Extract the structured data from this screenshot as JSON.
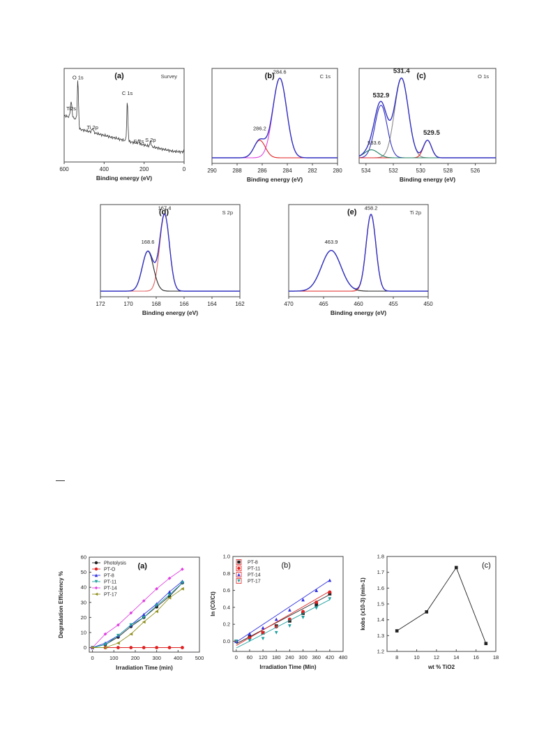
{
  "xps": [
    {
      "id": "a",
      "letter": "(a)",
      "tag": "Survey",
      "xlabel": "Binding energy (eV)",
      "xlim": [
        600,
        0
      ],
      "xticks": [
        600,
        400,
        200,
        0
      ],
      "labels": [
        {
          "text": "O 1s",
          "x": 531,
          "y": 0.97
        },
        {
          "text": "C 1s",
          "x": 284,
          "y": 0.77
        },
        {
          "text": "Ti 2p",
          "x": 458,
          "y": 0.33
        },
        {
          "text": "S 2s",
          "x": 227,
          "y": 0.15
        },
        {
          "text": "S 2p",
          "x": 168,
          "y": 0.17
        },
        {
          "text": "Ti2s",
          "x": 565,
          "y": 0.57
        }
      ]
    },
    {
      "id": "b",
      "letter": "(b)",
      "tag": "C 1s",
      "xlabel": "Binding energy (eV)",
      "xlim": [
        290,
        280
      ],
      "xticks": [
        290,
        288,
        286,
        284,
        282,
        280
      ],
      "peaks": [
        {
          "name": "284.6",
          "center": 284.6,
          "height": 1.0,
          "width": 0.55,
          "color": "#e040e0"
        },
        {
          "name": "286.2",
          "center": 286.2,
          "height": 0.22,
          "width": 0.45,
          "color": "#e02020"
        }
      ],
      "labels": [
        {
          "text": "284.6",
          "x": 284.6,
          "y": 1.04
        },
        {
          "text": "286.2",
          "x": 286.2,
          "y": 0.33
        }
      ]
    },
    {
      "id": "c",
      "letter": "(c)",
      "tag": "O 1s",
      "xlabel": "Binding energy (eV)",
      "xlim": [
        534.5,
        524.5
      ],
      "xticks": [
        534,
        532,
        530,
        528,
        526
      ],
      "peaks": [
        {
          "name": "531.4",
          "center": 531.4,
          "height": 1.0,
          "width": 0.5,
          "color": "#888888"
        },
        {
          "name": "532.9",
          "center": 532.9,
          "height": 0.66,
          "width": 0.45,
          "color": "#3030c0"
        },
        {
          "name": "529.5",
          "center": 529.5,
          "height": 0.22,
          "width": 0.3,
          "color": "#e02020"
        },
        {
          "name": "533.6",
          "center": 533.6,
          "height": 0.1,
          "width": 0.5,
          "color": "#208060"
        }
      ],
      "labels": [
        {
          "text": "531.4",
          "x": 531.4,
          "y": 1.05
        },
        {
          "text": "532.9",
          "x": 532.9,
          "y": 0.74
        },
        {
          "text": "529.5",
          "x": 529.2,
          "y": 0.27
        },
        {
          "text": "533.6",
          "x": 533.4,
          "y": 0.15
        }
      ]
    },
    {
      "id": "d",
      "letter": "(d)",
      "tag": "S 2p",
      "xlabel": "Binding energy (eV)",
      "xlim": [
        172,
        162
      ],
      "xticks": [
        172,
        170,
        168,
        166,
        164,
        162
      ],
      "peaks": [
        {
          "name": "167.4",
          "center": 167.4,
          "height": 1.0,
          "width": 0.35,
          "color": "#e06060"
        },
        {
          "name": "168.6",
          "center": 168.6,
          "height": 0.52,
          "width": 0.4,
          "color": "#222222"
        }
      ],
      "labels": [
        {
          "text": "167.4",
          "x": 167.4,
          "y": 1.04
        },
        {
          "text": "168.6",
          "x": 168.6,
          "y": 0.6
        }
      ]
    },
    {
      "id": "e",
      "letter": "(e)",
      "tag": "Ti 2p",
      "xlabel": "Binding energy (eV)",
      "xlim": [
        470,
        450
      ],
      "xticks": [
        470,
        465,
        460,
        455,
        450
      ],
      "peaks": [
        {
          "name": "458.2",
          "center": 458.2,
          "height": 1.0,
          "width": 0.7,
          "color": "#e02020"
        },
        {
          "name": "463.9",
          "center": 463.9,
          "height": 0.53,
          "width": 1.4,
          "color": "#222222"
        }
      ],
      "labels": [
        {
          "text": "458.2",
          "x": 458.2,
          "y": 1.04
        },
        {
          "text": "463.9",
          "x": 463.9,
          "y": 0.6
        }
      ]
    }
  ],
  "chart_data": [
    {
      "type": "line",
      "id": "deg",
      "letter": "(a)",
      "xlabel": "Irradiation Time (min)",
      "ylabel": "Degradation Efficiency %",
      "xlim": [
        -15,
        500
      ],
      "ylim": [
        -3,
        60
      ],
      "xticks": [
        0,
        100,
        200,
        300,
        400,
        500
      ],
      "yticks": [
        0,
        10,
        20,
        30,
        40,
        50,
        60
      ],
      "legend": "top-left",
      "x": [
        0,
        60,
        120,
        180,
        240,
        300,
        360,
        420
      ],
      "series": [
        {
          "name": "Photolysis",
          "color": "#222222",
          "marker": "circle",
          "values": [
            0,
            2,
            7,
            14,
            20,
            27,
            34,
            43
          ]
        },
        {
          "name": "PT-O",
          "color": "#e02020",
          "marker": "circle",
          "values": [
            0,
            0,
            0,
            0,
            0,
            0,
            0,
            0
          ]
        },
        {
          "name": "PT-8",
          "color": "#3030e0",
          "marker": "triangle",
          "values": [
            0,
            3,
            8,
            15,
            22,
            29,
            37,
            44
          ]
        },
        {
          "name": "PT-11",
          "color": "#20a0a0",
          "marker": "triangle-down",
          "values": [
            0,
            2,
            8,
            15,
            20,
            28,
            35,
            43
          ]
        },
        {
          "name": "PT-14",
          "color": "#e040e0",
          "marker": "diamond",
          "values": [
            0,
            9,
            15,
            23,
            31,
            39,
            46,
            52
          ]
        },
        {
          "name": "PT-17",
          "color": "#909020",
          "marker": "triangle-left",
          "values": [
            0,
            0,
            3,
            9,
            17,
            24,
            33,
            39
          ]
        }
      ]
    },
    {
      "type": "scatter",
      "id": "kin",
      "letter": "(b)",
      "xlabel": "Irradiation Time (Min)",
      "ylabel": "ln (C0/Ct)",
      "xlim": [
        -15,
        480
      ],
      "ylim": [
        -0.12,
        1.0
      ],
      "xticks": [
        0,
        60,
        120,
        180,
        240,
        300,
        360,
        420,
        480
      ],
      "yticks": [
        0.0,
        0.2,
        0.4,
        0.6,
        0.8,
        1.0
      ],
      "legend": "top-left",
      "x": [
        0,
        60,
        120,
        180,
        240,
        300,
        360,
        420
      ],
      "series": [
        {
          "name": "PT-8",
          "color": "#222222",
          "marker": "square",
          "values": [
            0.0,
            0.05,
            0.1,
            0.18,
            0.24,
            0.33,
            0.43,
            0.56
          ],
          "fit": [
            -0.03,
            0.55
          ]
        },
        {
          "name": "PT-11",
          "color": "#e02020",
          "marker": "circle",
          "values": [
            0.0,
            0.04,
            0.1,
            0.17,
            0.26,
            0.35,
            0.46,
            0.58
          ],
          "fit": [
            -0.05,
            0.59
          ]
        },
        {
          "name": "PT-14",
          "color": "#3030e0",
          "marker": "triangle",
          "values": [
            0.0,
            0.09,
            0.16,
            0.26,
            0.37,
            0.49,
            0.6,
            0.72
          ],
          "fit": [
            -0.01,
            0.72
          ]
        },
        {
          "name": "PT-17",
          "color": "#20a0a0",
          "marker": "triangle-down",
          "values": [
            0.0,
            0.01,
            0.03,
            0.1,
            0.18,
            0.28,
            0.39,
            0.5
          ],
          "fit": [
            -0.08,
            0.49
          ]
        }
      ]
    },
    {
      "type": "line",
      "id": "kobs",
      "letter": "(c)",
      "xlabel": "wt % TiO2",
      "ylabel": "kobs (x10-3) (min-1)",
      "xlim": [
        7,
        18
      ],
      "ylim": [
        1.2,
        1.8
      ],
      "xticks": [
        8,
        10,
        12,
        14,
        16,
        18
      ],
      "yticks": [
        1.2,
        1.3,
        1.4,
        1.5,
        1.6,
        1.7,
        1.8
      ],
      "x": [
        8,
        11,
        14,
        17
      ],
      "series": [
        {
          "name": "",
          "color": "#222222",
          "marker": "square",
          "values": [
            1.33,
            1.45,
            1.73,
            1.25
          ]
        }
      ]
    }
  ]
}
